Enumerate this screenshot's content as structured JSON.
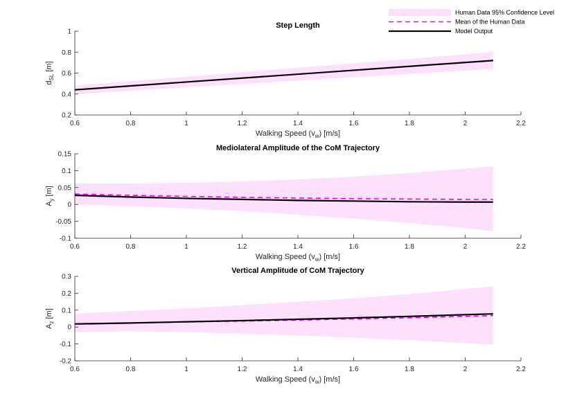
{
  "chart_data": [
    {
      "type": "line",
      "title": "Step Length",
      "xlabel": "Walking Speed (v",
      "xlabel_sub": "w",
      "xlabel_suffix": ") [m/s]",
      "ylabel": "d",
      "ylabel_sub": "SL",
      "ylabel_suffix": " [m]",
      "xlim": [
        0.6,
        2.2
      ],
      "ylim": [
        0.2,
        1.0
      ],
      "xticks": [
        0.6,
        0.8,
        1.0,
        1.2,
        1.4,
        1.6,
        1.8,
        2.0,
        2.2
      ],
      "xtick_labels": [
        "0.6",
        "0.8",
        "1",
        "1.2",
        "1.4",
        "1.6",
        "1.8",
        "2",
        "2.2"
      ],
      "yticks": [
        0.2,
        0.4,
        0.6,
        0.8,
        1.0
      ],
      "ytick_labels": [
        "0.2",
        "0.4",
        "0.6",
        "0.8",
        "1"
      ],
      "x": [
        0.6,
        2.1
      ],
      "series": [
        {
          "name": "Human Data 95% Confidence Level",
          "kind": "band",
          "lower": [
            0.4,
            0.64
          ],
          "upper": [
            0.48,
            0.8
          ]
        },
        {
          "name": "Mean of the Human Data",
          "kind": "dashed",
          "values": [
            0.44,
            0.72
          ]
        },
        {
          "name": "Model Output",
          "kind": "solid",
          "values": [
            0.44,
            0.72
          ]
        }
      ]
    },
    {
      "type": "line",
      "title": "Mediolateral Amplitude of the CoM Trajectory",
      "xlabel": "Walking Speed (v",
      "xlabel_sub": "w",
      "xlabel_suffix": ") [m/s]",
      "ylabel": "A",
      "ylabel_sub": "y",
      "ylabel_suffix": " [m]",
      "xlim": [
        0.6,
        2.2
      ],
      "ylim": [
        -0.1,
        0.15
      ],
      "xticks": [
        0.6,
        0.8,
        1.0,
        1.2,
        1.4,
        1.6,
        1.8,
        2.0,
        2.2
      ],
      "xtick_labels": [
        "0.6",
        "0.8",
        "1",
        "1.2",
        "1.4",
        "1.6",
        "1.8",
        "2",
        "2.2"
      ],
      "yticks": [
        -0.1,
        -0.05,
        0,
        0.05,
        0.1,
        0.15
      ],
      "ytick_labels": [
        "-0.1",
        "-0.05",
        "0",
        "0.05",
        "0.1",
        "0.15"
      ],
      "x": [
        0.6,
        0.8,
        1.0,
        1.2,
        1.4,
        1.6,
        1.8,
        2.0,
        2.1
      ],
      "series": [
        {
          "name": "Human Data 95% Confidence Level",
          "kind": "band",
          "lower": [
            0.0,
            -0.005,
            -0.012,
            -0.02,
            -0.03,
            -0.042,
            -0.055,
            -0.07,
            -0.079
          ],
          "upper": [
            0.062,
            0.062,
            0.064,
            0.068,
            0.074,
            0.082,
            0.093,
            0.106,
            0.113
          ]
        },
        {
          "name": "Mean of the Human Data",
          "kind": "dashed",
          "values": [
            0.031,
            0.027,
            0.024,
            0.021,
            0.019,
            0.017,
            0.016,
            0.015,
            0.015
          ]
        },
        {
          "name": "Model Output",
          "kind": "solid",
          "values": [
            0.027,
            0.022,
            0.018,
            0.015,
            0.012,
            0.01,
            0.008,
            0.007,
            0.007
          ]
        }
      ]
    },
    {
      "type": "line",
      "title": "Vertical Amplitude of CoM Trajectory",
      "xlabel": "Walking Speed (v",
      "xlabel_sub": "w",
      "xlabel_suffix": ") [m/s]",
      "ylabel": "A",
      "ylabel_sub": "z",
      "ylabel_suffix": " [m]",
      "xlim": [
        0.6,
        2.2
      ],
      "ylim": [
        -0.2,
        0.3
      ],
      "xticks": [
        0.6,
        0.8,
        1.0,
        1.2,
        1.4,
        1.6,
        1.8,
        2.0,
        2.2
      ],
      "xtick_labels": [
        "0.6",
        "0.8",
        "1",
        "1.2",
        "1.4",
        "1.6",
        "1.8",
        "2",
        "2.2"
      ],
      "yticks": [
        -0.2,
        -0.1,
        0,
        0.1,
        0.2,
        0.3
      ],
      "ytick_labels": [
        "-0.2",
        "-0.1",
        "0",
        "0.1",
        "0.2",
        "0.3"
      ],
      "x": [
        0.6,
        0.8,
        1.0,
        1.2,
        1.4,
        1.6,
        1.8,
        2.0,
        2.1
      ],
      "series": [
        {
          "name": "Human Data 95% Confidence Level",
          "kind": "band",
          "lower": [
            -0.03,
            -0.025,
            -0.03,
            -0.04,
            -0.05,
            -0.063,
            -0.078,
            -0.095,
            -0.105
          ],
          "upper": [
            0.08,
            0.095,
            0.11,
            0.13,
            0.15,
            0.17,
            0.195,
            0.225,
            0.24
          ]
        },
        {
          "name": "Mean of the Human Data",
          "kind": "dashed",
          "values": [
            0.02,
            0.024,
            0.03,
            0.035,
            0.041,
            0.048,
            0.055,
            0.063,
            0.068
          ]
        },
        {
          "name": "Model Output",
          "kind": "solid",
          "values": [
            0.018,
            0.024,
            0.031,
            0.038,
            0.046,
            0.054,
            0.063,
            0.073,
            0.078
          ]
        }
      ]
    }
  ],
  "legend": {
    "placement": "top-right",
    "entries": [
      {
        "label": "Human Data 95% Confidence Level",
        "kind": "band"
      },
      {
        "label": "Mean of the Human Data",
        "kind": "dashed"
      },
      {
        "label": "Model Output",
        "kind": "solid"
      }
    ]
  },
  "colors": {
    "band": "#fde0fb",
    "mean": "#e600e6",
    "model": "#000000",
    "axis": "#262626"
  }
}
